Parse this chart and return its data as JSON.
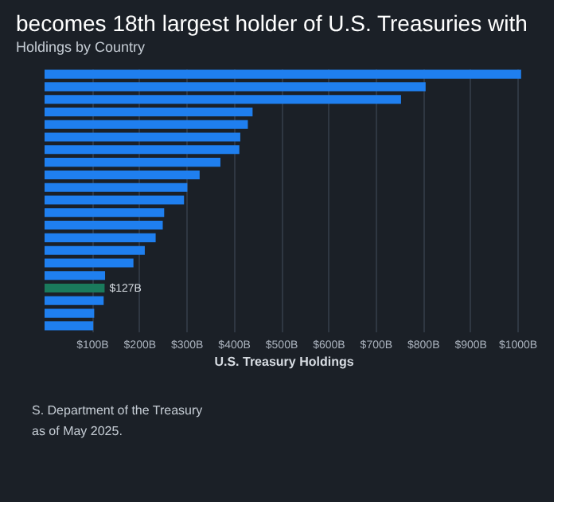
{
  "chart_data": {
    "type": "bar",
    "orientation": "horizontal",
    "title": "becomes 18th largest holder of U.S. Treasuries with",
    "subtitle": "Holdings by Country",
    "xlabel": "U.S. Treasury Holdings",
    "categories": [
      null,
      null,
      null,
      null,
      null,
      null,
      null,
      null,
      null,
      null,
      null,
      null,
      null,
      null,
      null,
      null,
      null,
      null,
      null,
      null,
      null
    ],
    "values": [
      1008,
      806,
      754,
      440,
      430,
      414,
      412,
      372,
      328,
      302,
      295,
      253,
      250,
      235,
      212,
      188,
      128,
      127,
      125,
      105,
      103
    ],
    "colors": [
      "#1f7fef",
      "#1f7fef",
      "#1f7fef",
      "#1f7fef",
      "#1f7fef",
      "#1f7fef",
      "#1f7fef",
      "#1f7fef",
      "#1f7fef",
      "#1f7fef",
      "#1f7fef",
      "#1f7fef",
      "#1f7fef",
      "#1f7fef",
      "#1f7fef",
      "#1f7fef",
      "#1f7fef",
      "#1a7a5c",
      "#1f7fef",
      "#1f7fef",
      "#1f7fef"
    ],
    "value_labels": [
      null,
      null,
      null,
      null,
      null,
      null,
      null,
      null,
      null,
      null,
      null,
      null,
      null,
      null,
      null,
      null,
      null,
      "$127B",
      null,
      null,
      null
    ],
    "xlim": [
      0,
      1010
    ],
    "xticks": [
      {
        "value": 100,
        "label": "$100B"
      },
      {
        "value": 200,
        "label": "$200B"
      },
      {
        "value": 300,
        "label": "$300B"
      },
      {
        "value": 400,
        "label": "$400B"
      },
      {
        "value": 500,
        "label": "$500B"
      },
      {
        "value": 600,
        "label": "$600B"
      },
      {
        "value": 700,
        "label": "$700B"
      },
      {
        "value": 800,
        "label": "$800B"
      },
      {
        "value": 900,
        "label": "$900B"
      },
      {
        "value": 1000,
        "label": "$1000B"
      }
    ],
    "grid": "x",
    "tick_labels": "x",
    "annotations": [
      "S. Department of the Treasury",
      "as of May 2025."
    ]
  }
}
